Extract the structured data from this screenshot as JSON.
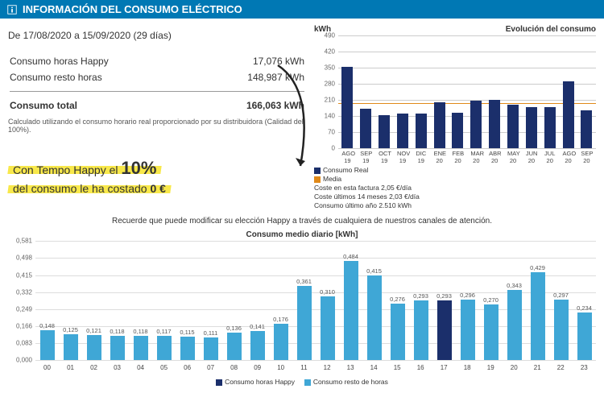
{
  "header": {
    "title": "INFORMACIÓN DEL CONSUMO ELÉCTRICO"
  },
  "period": {
    "text": "De 17/08/2020 a 15/09/2020 (29 días)"
  },
  "consumption": {
    "happy_label": "Consumo horas Happy",
    "happy_value": "17,076 kWh",
    "rest_label": "Consumo resto horas",
    "rest_value": "148,987 kWh",
    "total_label": "Consumo total",
    "total_value": "166,063 kWh",
    "calc_note": "Calculado utilizando el consumo horario real proporcionado por su distribuidora (Calidad del 100%)."
  },
  "highlight": {
    "line1_pre": "Con Tempo Happy el ",
    "pct": "10%",
    "line2_pre": "del consumo le ha costado ",
    "zero": "0 €"
  },
  "evo": {
    "yaxis_label": "kWh",
    "title": "Evolución del consumo",
    "ylim": [
      0,
      490
    ],
    "ytick_step": 70,
    "categories": [
      "AGO 19",
      "SEP 19",
      "OCT 19",
      "NOV 19",
      "DIC 19",
      "ENE 20",
      "FEB 20",
      "MAR 20",
      "ABR 20",
      "MAY 20",
      "JUN 20",
      "JUL 20",
      "AGO 20",
      "SEP 20"
    ],
    "values": [
      355,
      170,
      145,
      150,
      150,
      200,
      155,
      205,
      210,
      190,
      180,
      180,
      290,
      165
    ],
    "median": 195,
    "bar_color": "#1b2f6b",
    "median_color": "#e08a1a",
    "legend_real": "Consumo Real",
    "legend_media": "Media",
    "note1": "Coste en esta factura 2,05 €/día",
    "note2": "Coste últimos 14 meses 2,03 €/día",
    "note3": "Consumo último año  2.510 kWh"
  },
  "reminder": "Recuerde que puede modificar su elección Happy a través de cualquiera de nuestros canales de atención.",
  "daily": {
    "title": "Consumo medio diario [kWh]",
    "ylim": [
      0,
      0.581
    ],
    "ytick_step": 0.083,
    "hours": [
      "00",
      "01",
      "02",
      "03",
      "04",
      "05",
      "06",
      "07",
      "08",
      "09",
      "10",
      "11",
      "12",
      "13",
      "14",
      "15",
      "16",
      "17",
      "18",
      "19",
      "20",
      "21",
      "22",
      "23"
    ],
    "values": [
      0.148,
      0.125,
      0.121,
      0.118,
      0.118,
      0.117,
      0.115,
      0.111,
      0.136,
      0.141,
      0.176,
      0.361,
      0.31,
      0.484,
      0.415,
      0.276,
      0.293,
      0.293,
      0.296,
      0.27,
      0.343,
      0.429,
      0.297,
      0.234
    ],
    "happy_hours": [
      17
    ],
    "color_rest": "#3fa7d6",
    "color_happy": "#1b2f6b",
    "legend_happy": "Consumo horas Happy",
    "legend_rest": "Consumo resto de horas"
  }
}
